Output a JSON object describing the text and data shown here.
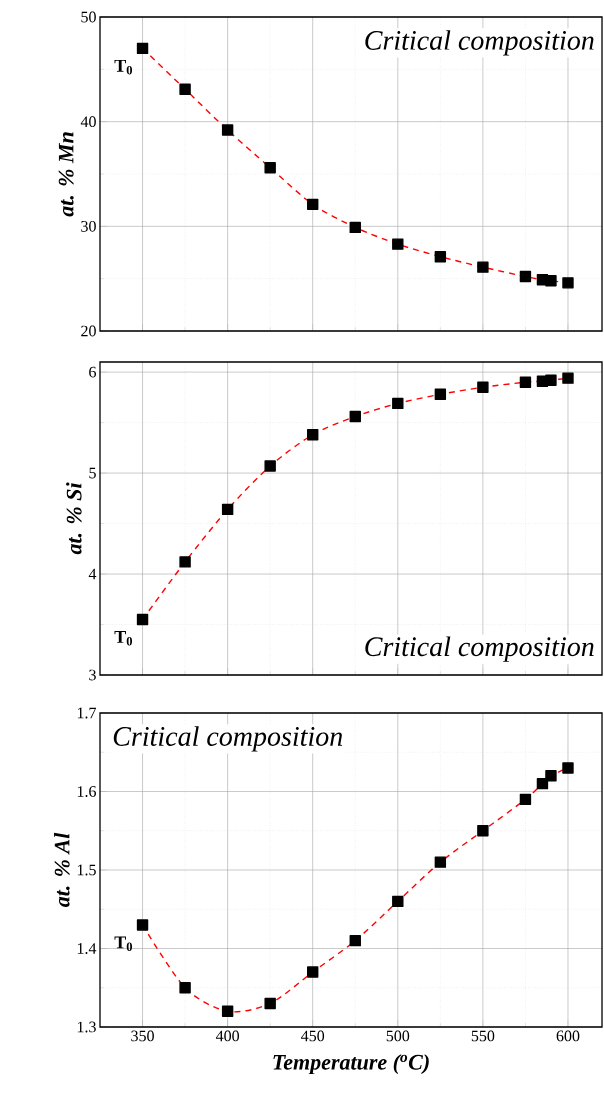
{
  "chart_data": [
    {
      "type": "line",
      "x": [
        350,
        375,
        400,
        425,
        450,
        475,
        500,
        525,
        550,
        575,
        585,
        590,
        600
      ],
      "values": [
        47,
        43.1,
        39.2,
        35.6,
        32.1,
        29.9,
        28.3,
        27.1,
        26.1,
        25.2,
        24.9,
        24.8,
        24.6
      ],
      "color": "#ff0000",
      "marker": "square",
      "line_style": "dashed",
      "grid": true,
      "ylabel": "at. % Mn",
      "xlim": [
        325,
        620
      ],
      "ylim": [
        20,
        50
      ],
      "xticks": [
        350,
        400,
        450,
        500,
        550,
        600
      ],
      "yticks": [
        20,
        30,
        40,
        50
      ],
      "tick_labels": "y",
      "annotations": [
        "Critical composition",
        "T$_{0}$"
      ]
    },
    {
      "type": "line",
      "x": [
        350,
        375,
        400,
        425,
        450,
        475,
        500,
        525,
        550,
        575,
        585,
        590,
        600
      ],
      "values": [
        3.55,
        4.12,
        4.64,
        5.07,
        5.38,
        5.56,
        5.69,
        5.78,
        5.85,
        5.9,
        5.91,
        5.92,
        5.94
      ],
      "color": "#ff0000",
      "marker": "square",
      "line_style": "dashed",
      "grid": true,
      "ylabel": "at. % Si",
      "xlim": [
        325,
        620
      ],
      "ylim": [
        3,
        6.1
      ],
      "xticks": [
        350,
        400,
        450,
        500,
        550,
        600
      ],
      "yticks": [
        3,
        4,
        5,
        6
      ],
      "tick_labels": "y",
      "annotations": [
        "Critical composition",
        "T$_{0}$"
      ]
    },
    {
      "type": "line",
      "x": [
        350,
        375,
        400,
        425,
        450,
        475,
        500,
        525,
        550,
        575,
        585,
        590,
        600
      ],
      "values": [
        1.43,
        1.35,
        1.32,
        1.33,
        1.37,
        1.41,
        1.46,
        1.51,
        1.55,
        1.59,
        1.61,
        1.62,
        1.63
      ],
      "color": "#ff0000",
      "marker": "square",
      "line_style": "dashed",
      "grid": true,
      "ylabel": "at. % Al",
      "xlabel": "Temperature ($^{o}$C)",
      "xlim": [
        325,
        620
      ],
      "ylim": [
        1.3,
        1.7
      ],
      "xticks": [
        350,
        400,
        450,
        500,
        550,
        600
      ],
      "yticks": [
        1.3,
        1.4,
        1.5,
        1.6,
        1.7
      ],
      "annotations": [
        "Critical composition",
        "T$_{0}$"
      ]
    }
  ]
}
